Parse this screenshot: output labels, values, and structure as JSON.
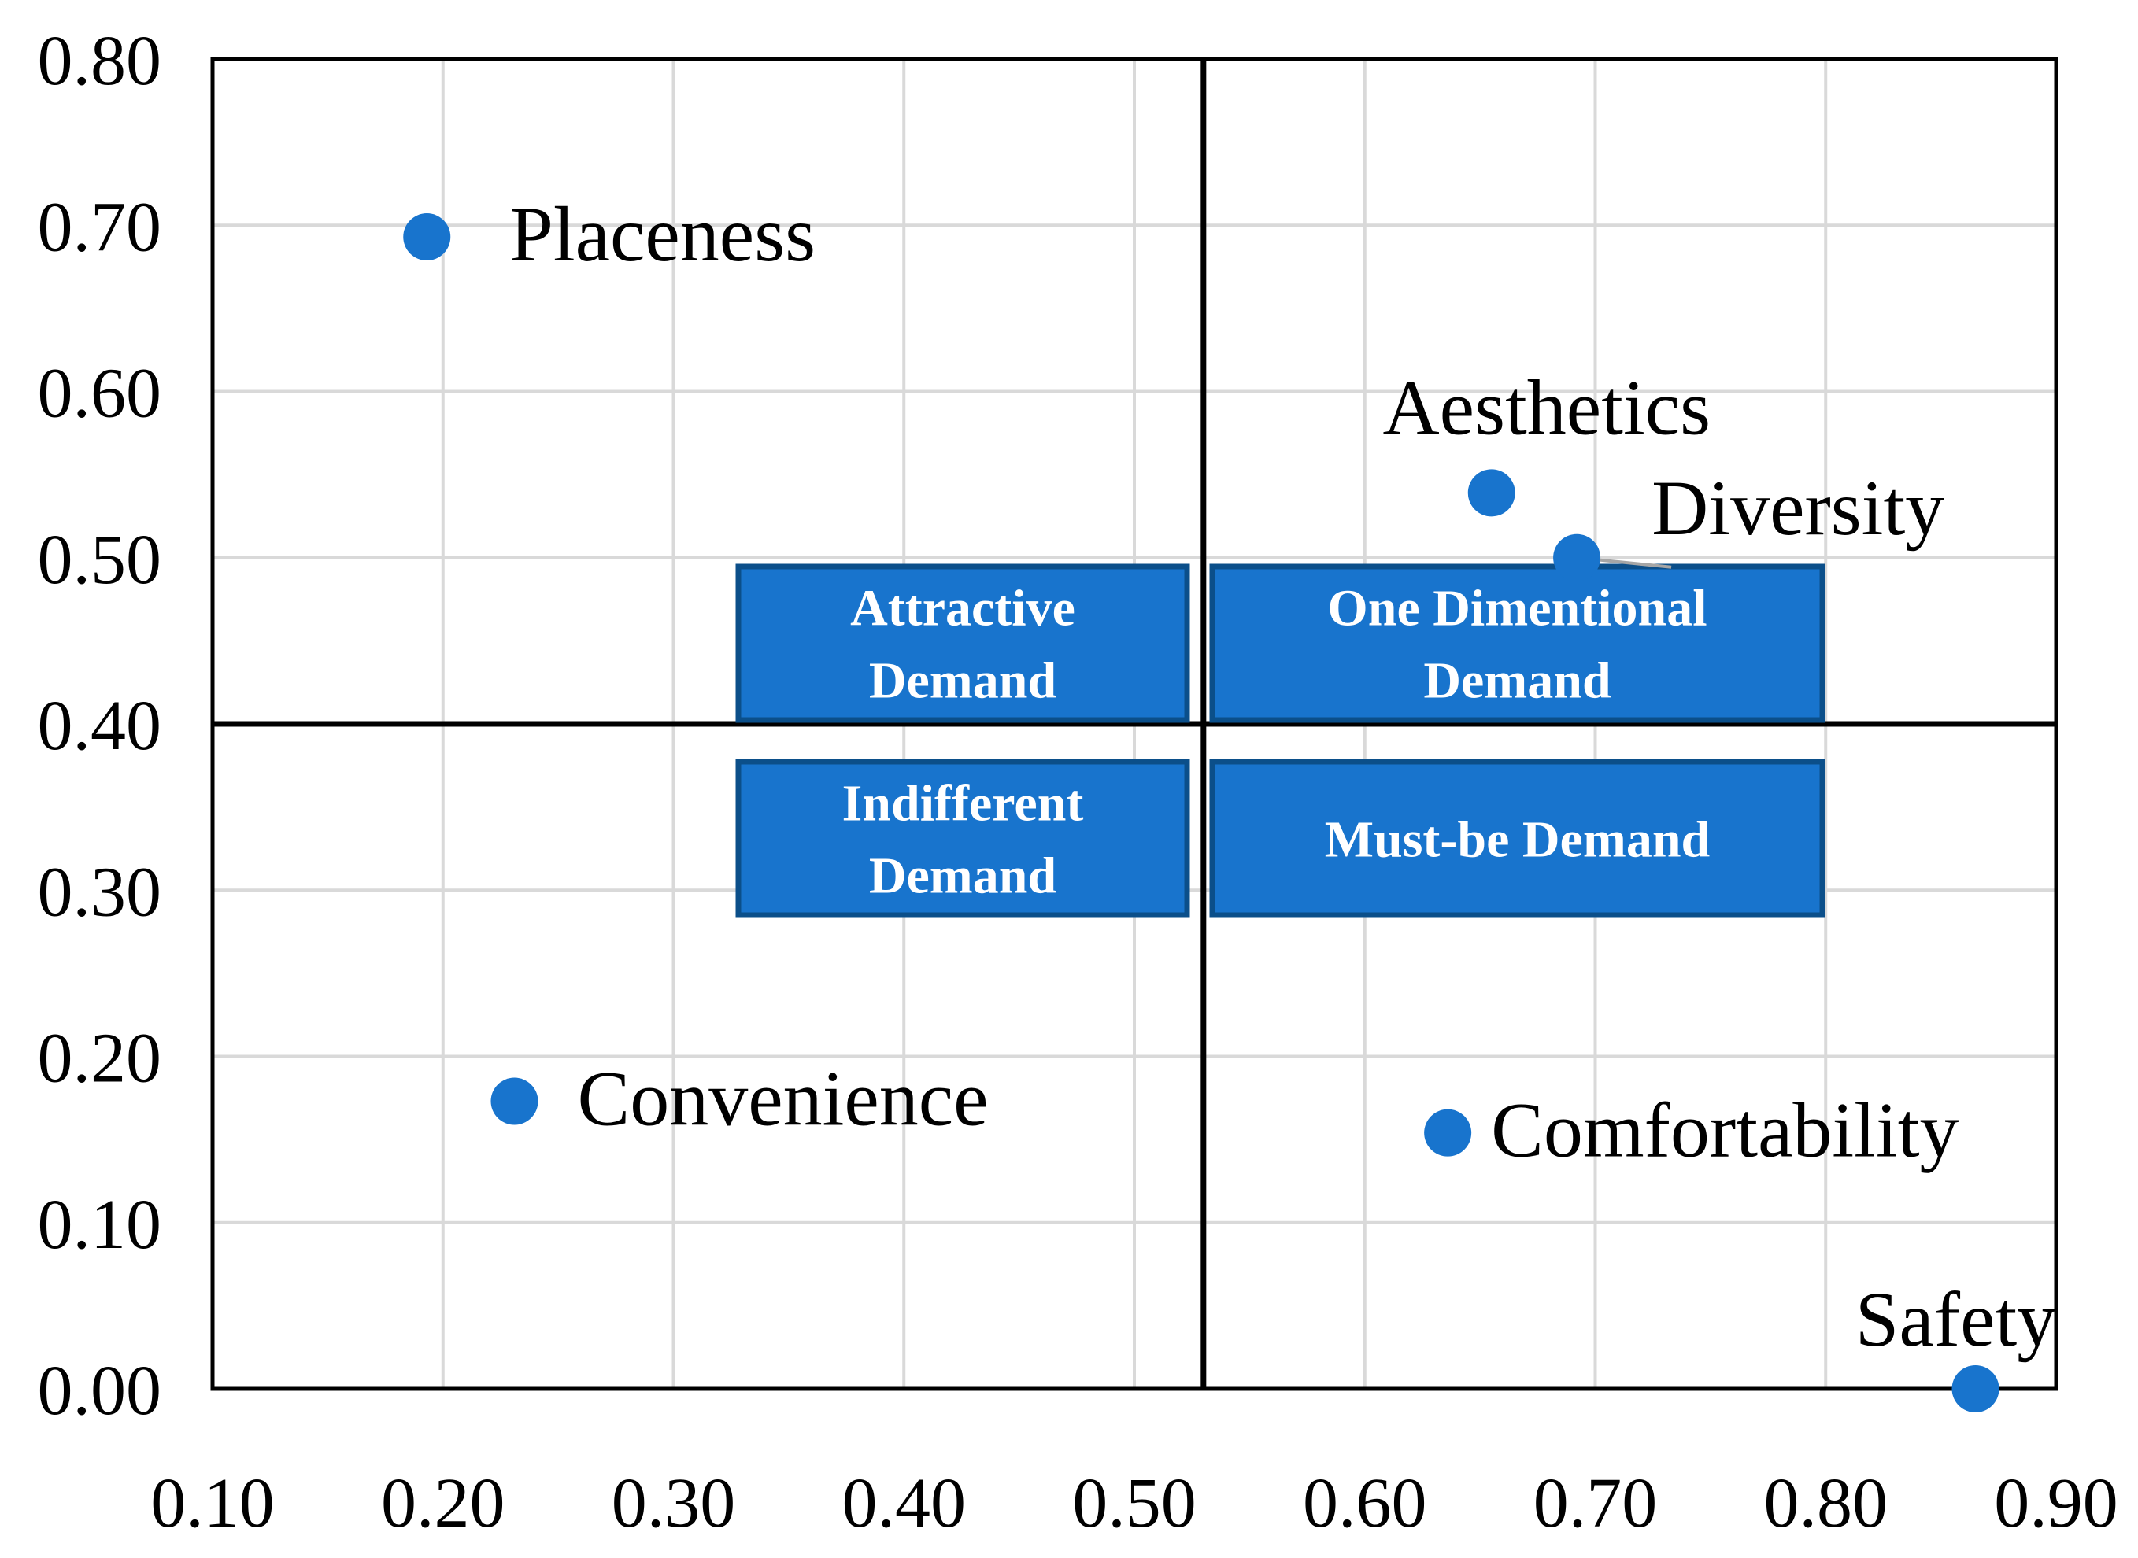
{
  "chart_data": {
    "type": "scatter",
    "xlim": [
      0.1,
      0.9
    ],
    "ylim": [
      0.0,
      0.8
    ],
    "x_ticks": [
      "0.10",
      "0.20",
      "0.30",
      "0.40",
      "0.50",
      "0.60",
      "0.70",
      "0.80",
      "0.90"
    ],
    "y_ticks": [
      "0.00",
      "0.10",
      "0.20",
      "0.30",
      "0.40",
      "0.50",
      "0.60",
      "0.70",
      "0.80"
    ],
    "grid": true,
    "title": "",
    "xlabel": "",
    "ylabel": "",
    "divider_x": 0.53,
    "divider_y": 0.4,
    "point_color": "#1874CD",
    "box_color": "#1874CD",
    "box_border_color": "#0B4F8A",
    "points": [
      {
        "label": "Placeness",
        "x": 0.193,
        "y": 0.693
      },
      {
        "label": "Aesthetics",
        "x": 0.655,
        "y": 0.539
      },
      {
        "label": "Diversity",
        "x": 0.692,
        "y": 0.5
      },
      {
        "label": "Convenience",
        "x": 0.231,
        "y": 0.173
      },
      {
        "label": "Comfortability",
        "x": 0.636,
        "y": 0.154
      },
      {
        "label": "Safety",
        "x": 0.865,
        "y": 0.0
      }
    ],
    "quadrant_boxes": [
      {
        "name": "attractive",
        "lines": [
          "Attractive",
          "Demand"
        ]
      },
      {
        "name": "one-dimensional",
        "lines": [
          "One Dimentional",
          "Demand"
        ]
      },
      {
        "name": "indifferent",
        "lines": [
          "Indifferent",
          "Demand"
        ]
      },
      {
        "name": "must-be",
        "lines": [
          "Must-be Demand"
        ]
      }
    ]
  }
}
